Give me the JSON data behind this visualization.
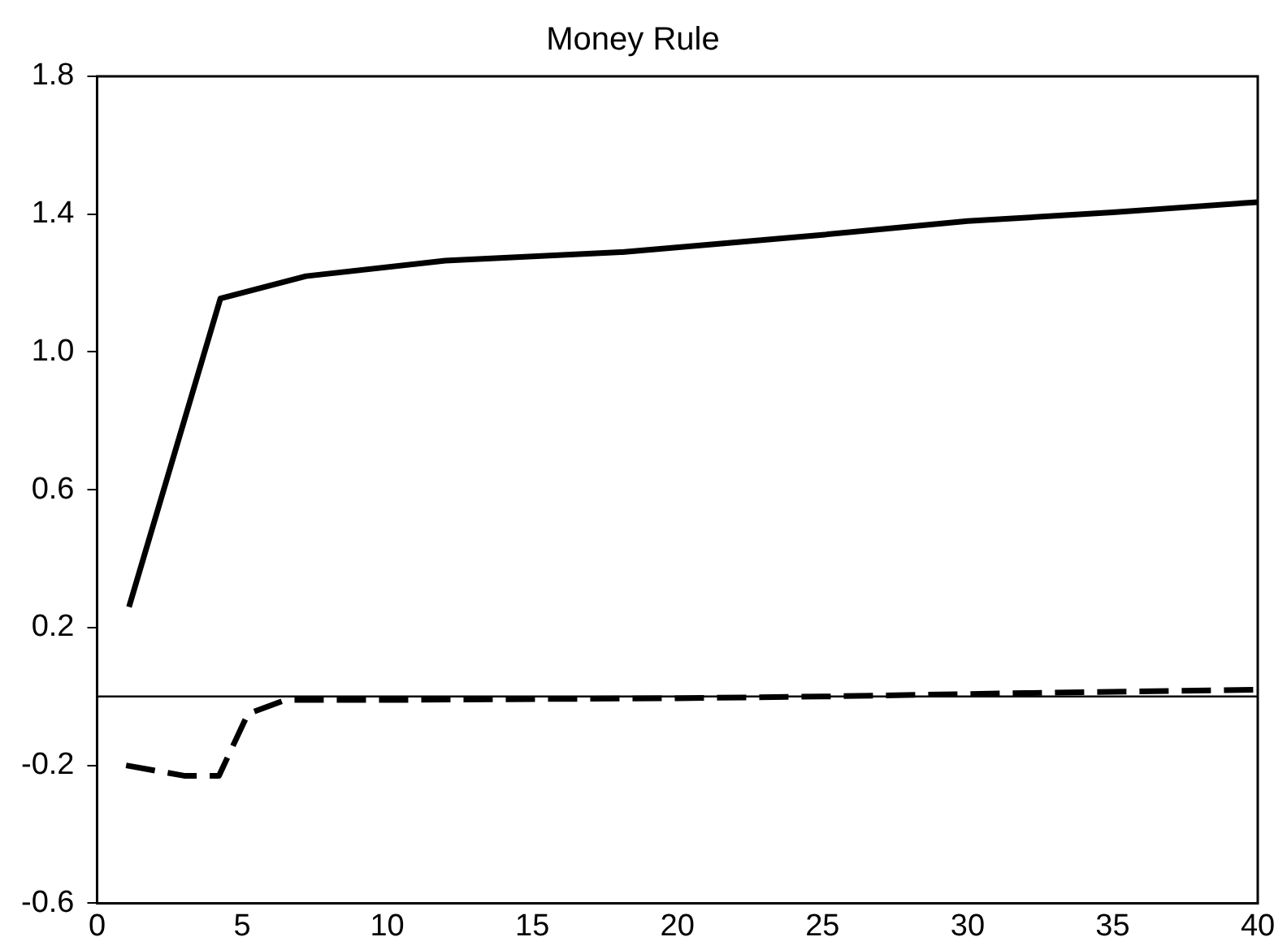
{
  "chart_data": {
    "type": "line",
    "title": "Money Rule",
    "xlim": [
      0,
      40
    ],
    "xticks": [
      0,
      5,
      10,
      15,
      20,
      25,
      30,
      35,
      40
    ],
    "ylim": [
      -0.6,
      1.8
    ],
    "yticks": [
      -0.6,
      -0.2,
      0.2,
      0.6,
      {
        "value": 1,
        "label": "1.0"
      },
      1.4,
      1.8
    ],
    "grid": false,
    "legend": false,
    "marker": "none",
    "ref_lines": [
      {
        "axis": "y",
        "value": 0,
        "color": "#000000"
      }
    ],
    "series": [
      {
        "color": "#000000",
        "line_style": "solid",
        "x": [
          1.1,
          4.25,
          7.2,
          12,
          18.1,
          25,
          30,
          35,
          40
        ],
        "values": [
          0.26,
          1.155,
          1.22,
          1.265,
          1.29,
          1.34,
          1.38,
          1.405,
          1.435
        ]
      },
      {
        "color": "#000000",
        "line_style": "dashed",
        "x": [
          1,
          3,
          4.2,
          5.2,
          6.5,
          10,
          20,
          25,
          32,
          40
        ],
        "values": [
          -0.2,
          -0.23,
          -0.23,
          -0.05,
          -0.01,
          -0.01,
          -0.005,
          0,
          0.01,
          0.02
        ]
      }
    ]
  }
}
